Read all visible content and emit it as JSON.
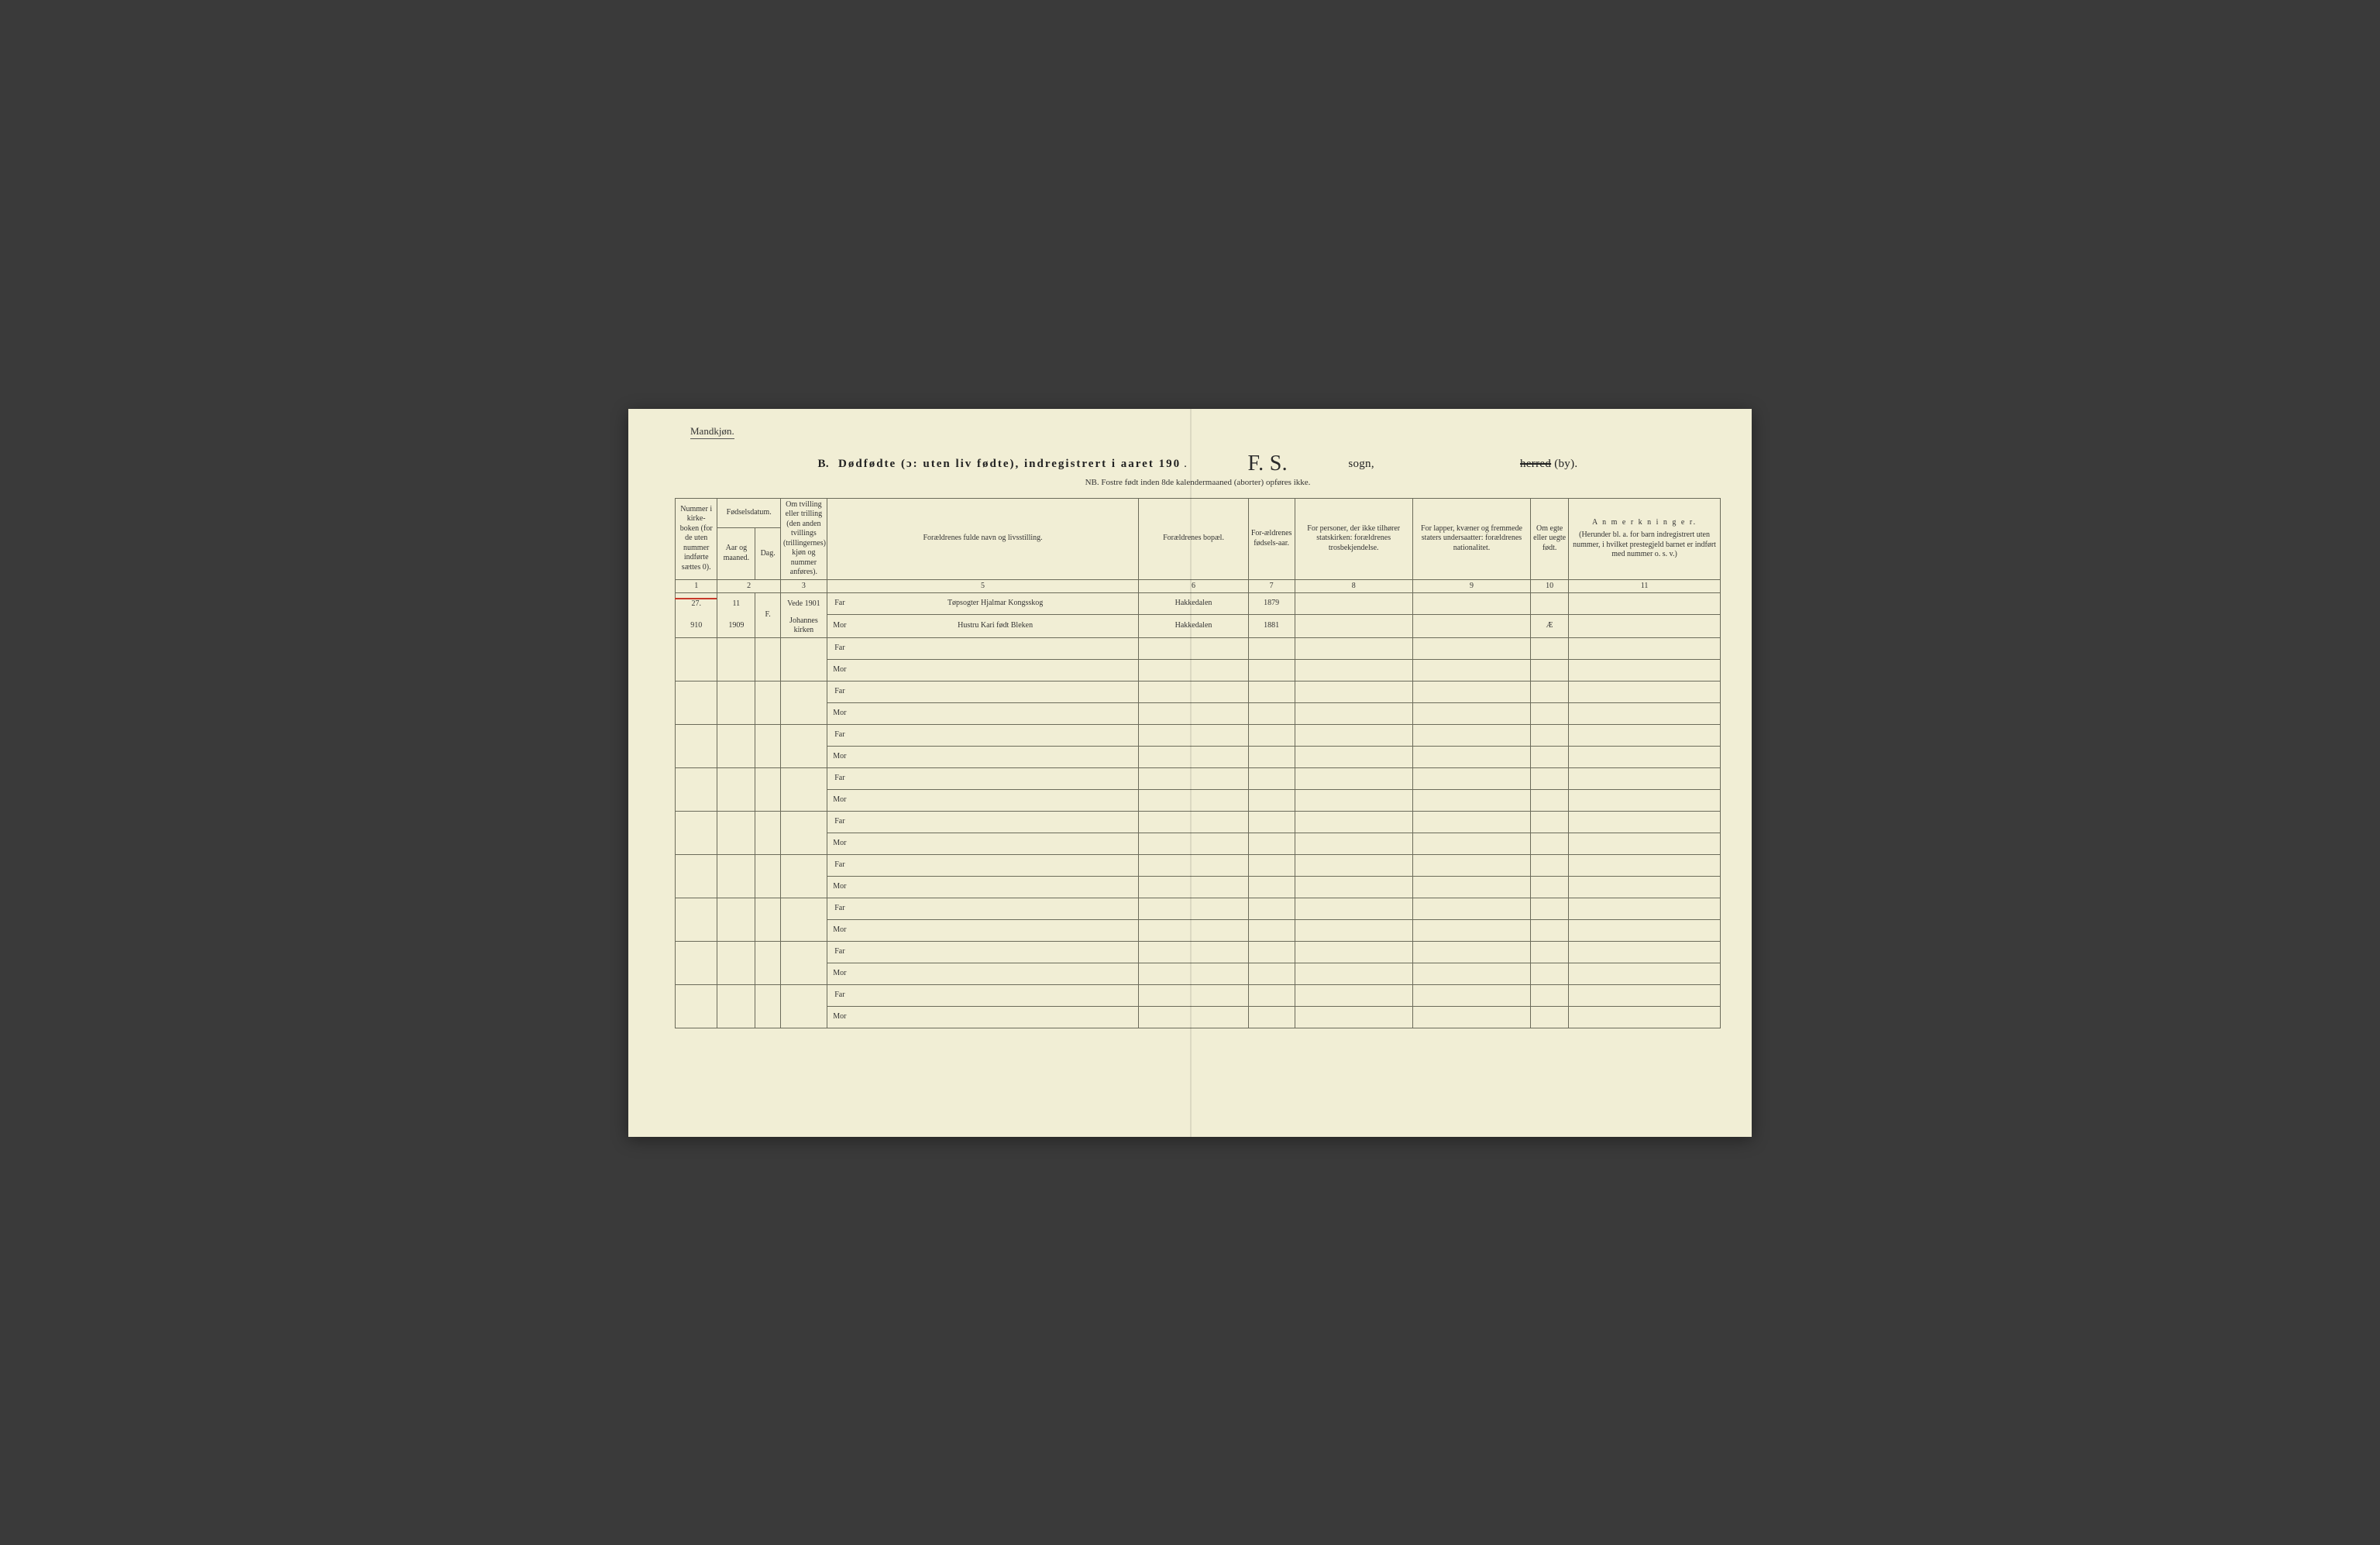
{
  "gender_label": "Mandkjøn.",
  "title": {
    "prefix": "B.",
    "main": "Dødfødte (ɔ: uten liv fødte), indregistrert i aaret 190",
    "year_dot": " .",
    "parish_script": "F. S.",
    "parish_word": "sogn,",
    "herred": "herred",
    "by": "(by)."
  },
  "sub_note": "NB.  Fostre født inden 8de kalendermaaned (aborter) opføres ikke.",
  "headers": {
    "c1": "Nummer i kirke-boken (for de uten nummer indførte sættes 0).",
    "c2": "Fødselsdatum.",
    "c2a": "Aar og maaned.",
    "c2b": "Dag.",
    "c3": "Om tvilling eller trilling (den anden tvillings (trillingernes) kjøn og nummer anføres).",
    "c5": "Forældrenes fulde navn og livsstilling.",
    "c6": "Forældrenes bopæl.",
    "c7": "For-ældrenes fødsels-aar.",
    "c8": "For personer, der ikke tilhører statskirken: forældrenes trosbekjendelse.",
    "c9": "For lapper, kvæner og fremmede staters undersaatter: forældrenes nationalitet.",
    "c10": "Om egte eller uegte født.",
    "c11_title": "A n m e r k n i n g e r.",
    "c11_sub": "(Herunder bl. a. for barn indregistrert uten nummer, i hvilket prestegjeld barnet er indført med nummer o. s. v.)"
  },
  "colnums": [
    "1",
    "2",
    "3",
    "5",
    "6",
    "7",
    "8",
    "9",
    "10",
    "11"
  ],
  "far_label": "Far",
  "mor_label": "Mor",
  "entry": {
    "num_top": "27.",
    "num_bot": "910",
    "date_top": "11",
    "date_bot": "1909",
    "dag": "F.",
    "twin_top": "Vede 1901",
    "twin_bot": "Johannes kirken",
    "far_name": "Tøpsogter Hjalmar Kongsskog",
    "mor_name": "Hustru Kari født Bleken",
    "far_bopel": "Hakkedalen",
    "mor_bopel": "Hakkedalen",
    "far_year": "1879",
    "mor_year": "1881",
    "egte": "Æ"
  },
  "colors": {
    "paper": "#f1eed5",
    "ink": "#333333",
    "border": "#6b6b5a",
    "red": "#c83a2a"
  }
}
